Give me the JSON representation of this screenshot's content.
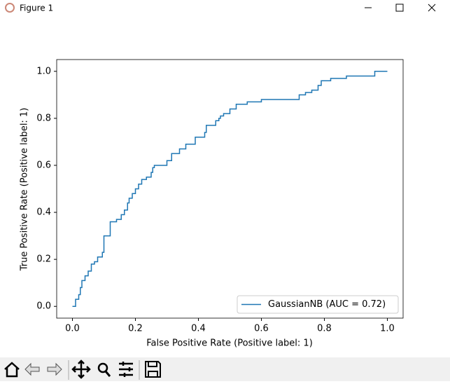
{
  "window": {
    "title": "Figure 1"
  },
  "chart_data": {
    "type": "line",
    "x_label": "False Positive Rate (Positive label: 1)",
    "y_label": "True Positive Rate (Positive label: 1)",
    "xlim": [
      -0.05,
      1.05
    ],
    "ylim": [
      -0.05,
      1.05
    ],
    "xticks": [
      {
        "value": 0,
        "label": "0.0"
      },
      0.2,
      0.4,
      0.6,
      0.8,
      {
        "value": 1,
        "label": "1.0"
      }
    ],
    "yticks": [
      {
        "value": 0,
        "label": "0.0"
      },
      0.2,
      0.4,
      0.6,
      0.8,
      {
        "value": 1,
        "label": "1.0"
      }
    ],
    "grid": false,
    "legend": "lower right",
    "x": [
      0,
      0.01,
      0.01,
      0.02,
      0.02,
      0.025,
      0.025,
      0.03,
      0.03,
      0.04,
      0.04,
      0.05,
      0.05,
      0.06,
      0.06,
      0.07,
      0.07,
      0.08,
      0.08,
      0.095,
      0.095,
      0.1,
      0.1,
      0.12,
      0.12,
      0.14,
      0.14,
      0.155,
      0.155,
      0.165,
      0.165,
      0.175,
      0.175,
      0.18,
      0.18,
      0.19,
      0.19,
      0.2,
      0.2,
      0.21,
      0.21,
      0.22,
      0.22,
      0.235,
      0.235,
      0.25,
      0.25,
      0.255,
      0.255,
      0.26,
      0.26,
      0.3,
      0.3,
      0.315,
      0.315,
      0.34,
      0.34,
      0.36,
      0.36,
      0.39,
      0.39,
      0.42,
      0.42,
      0.425,
      0.425,
      0.455,
      0.455,
      0.465,
      0.465,
      0.47,
      0.47,
      0.48,
      0.48,
      0.5,
      0.5,
      0.52,
      0.52,
      0.555,
      0.555,
      0.6,
      0.6,
      0.72,
      0.72,
      0.74,
      0.74,
      0.76,
      0.76,
      0.78,
      0.78,
      0.79,
      0.79,
      0.82,
      0.82,
      0.87,
      0.87,
      0.96,
      0.96,
      1
    ],
    "series": [
      {
        "name": "GaussianNB (AUC = 0.72)",
        "color": "#1f77b4",
        "values": [
          0,
          0,
          0.03,
          0.03,
          0.05,
          0.05,
          0.08,
          0.08,
          0.11,
          0.11,
          0.13,
          0.13,
          0.15,
          0.15,
          0.18,
          0.18,
          0.19,
          0.19,
          0.21,
          0.21,
          0.23,
          0.23,
          0.3,
          0.3,
          0.36,
          0.36,
          0.37,
          0.37,
          0.39,
          0.39,
          0.41,
          0.41,
          0.44,
          0.44,
          0.46,
          0.46,
          0.48,
          0.48,
          0.5,
          0.5,
          0.52,
          0.52,
          0.54,
          0.54,
          0.55,
          0.55,
          0.57,
          0.57,
          0.59,
          0.59,
          0.6,
          0.6,
          0.62,
          0.62,
          0.65,
          0.65,
          0.67,
          0.67,
          0.69,
          0.69,
          0.72,
          0.72,
          0.74,
          0.74,
          0.77,
          0.77,
          0.79,
          0.79,
          0.8,
          0.8,
          0.81,
          0.81,
          0.82,
          0.82,
          0.84,
          0.84,
          0.86,
          0.86,
          0.87,
          0.87,
          0.88,
          0.88,
          0.9,
          0.9,
          0.91,
          0.91,
          0.92,
          0.92,
          0.94,
          0.94,
          0.96,
          0.96,
          0.97,
          0.97,
          0.98,
          0.98,
          1,
          1
        ]
      }
    ]
  }
}
